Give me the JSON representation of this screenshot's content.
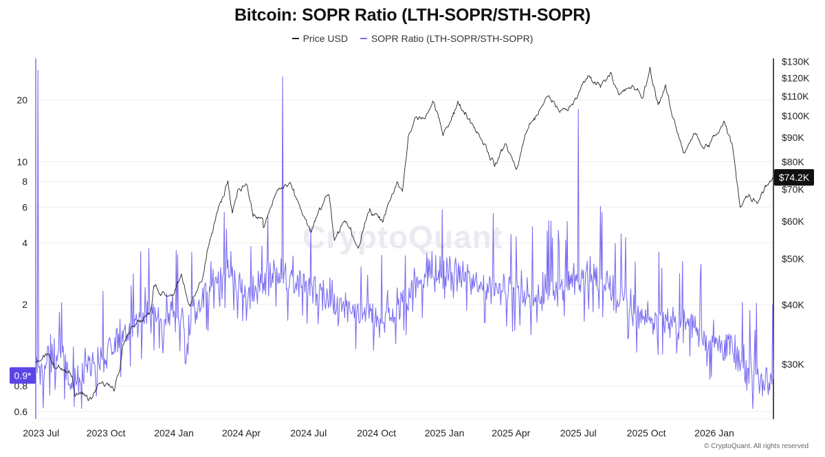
{
  "colors": {
    "price": "#222222",
    "sopr": "#7b6ef0",
    "grid": "#eeeeee",
    "price_badge": "#111111",
    "sopr_badge": "#5b45e6"
  },
  "legend": {
    "price_label": "Price USD",
    "sopr_label": "SOPR Ratio (LTH-SOPR/STH-SOPR)"
  },
  "watermark": "CryptoQuant",
  "copyright": "© CryptoQuant. All rights reserved",
  "chart_data": {
    "type": "line",
    "title": "Bitcoin: SOPR Ratio (LTH-SOPR/STH-SOPR)",
    "xlabel": "",
    "ylabel": "",
    "x_range": [
      "2023-06-28",
      "2026-03-22"
    ],
    "x_ticks": [
      {
        "date": "2023-07-01",
        "label": "2023 Jul"
      },
      {
        "date": "2023-10-01",
        "label": "2023 Oct"
      },
      {
        "date": "2024-01-01",
        "label": "2024 Jan"
      },
      {
        "date": "2024-04-01",
        "label": "2024 Apr"
      },
      {
        "date": "2024-07-01",
        "label": "2024 Jul"
      },
      {
        "date": "2024-10-01",
        "label": "2024 Oct"
      },
      {
        "date": "2025-01-01",
        "label": "2025 Jan"
      },
      {
        "date": "2025-04-01",
        "label": "2025 Apr"
      },
      {
        "date": "2025-07-01",
        "label": "2025 Jul"
      },
      {
        "date": "2025-10-01",
        "label": "2025 Oct"
      },
      {
        "date": "2026-01-01",
        "label": "2026 Jan"
      }
    ],
    "y_left": {
      "scale": "log",
      "range": [
        0.55,
        32
      ],
      "ticks": [
        {
          "value": 0.6,
          "label": "0.6"
        },
        {
          "value": 0.8,
          "label": "0.8"
        },
        {
          "value": 2,
          "label": "2"
        },
        {
          "value": 4,
          "label": "4"
        },
        {
          "value": 6,
          "label": "6"
        },
        {
          "value": 8,
          "label": "8"
        },
        {
          "value": 10,
          "label": "10"
        },
        {
          "value": 20,
          "label": "20"
        }
      ]
    },
    "y_right": {
      "scale": "log",
      "range": [
        23000,
        132000
      ],
      "ticks": [
        {
          "value": 30000,
          "label": "$30K"
        },
        {
          "value": 40000,
          "label": "$40K"
        },
        {
          "value": 50000,
          "label": "$50K"
        },
        {
          "value": 60000,
          "label": "$60K"
        },
        {
          "value": 70000,
          "label": "$70K"
        },
        {
          "value": 80000,
          "label": "$80K"
        },
        {
          "value": 90000,
          "label": "$90K"
        },
        {
          "value": 100000,
          "label": "$100K"
        },
        {
          "value": 110000,
          "label": "$110K"
        },
        {
          "value": 120000,
          "label": "$120K"
        },
        {
          "value": 130000,
          "label": "$130K"
        }
      ]
    },
    "current_values": {
      "price_label": "$74.2K",
      "price_value": 74200,
      "sopr_label": "0.9*",
      "sopr_value": 0.9
    },
    "series": [
      {
        "name": "Price USD",
        "axis": "right",
        "points": [
          [
            "2023-06-28",
            30500
          ],
          [
            "2023-07-05",
            30800
          ],
          [
            "2023-07-14",
            31200
          ],
          [
            "2023-07-24",
            29500
          ],
          [
            "2023-08-05",
            29200
          ],
          [
            "2023-08-16",
            28800
          ],
          [
            "2023-08-20",
            26100
          ],
          [
            "2023-09-01",
            25900
          ],
          [
            "2023-09-11",
            25100
          ],
          [
            "2023-09-20",
            27100
          ],
          [
            "2023-10-01",
            27300
          ],
          [
            "2023-10-12",
            26800
          ],
          [
            "2023-10-20",
            29600
          ],
          [
            "2023-10-24",
            33900
          ],
          [
            "2023-11-09",
            36700
          ],
          [
            "2023-11-20",
            37400
          ],
          [
            "2023-12-01",
            38700
          ],
          [
            "2023-12-05",
            44000
          ],
          [
            "2023-12-15",
            42500
          ],
          [
            "2023-12-31",
            42300
          ],
          [
            "2024-01-11",
            46600
          ],
          [
            "2024-01-23",
            39500
          ],
          [
            "2024-02-08",
            45300
          ],
          [
            "2024-02-15",
            52000
          ],
          [
            "2024-02-28",
            62000
          ],
          [
            "2024-03-05",
            66000
          ],
          [
            "2024-03-14",
            73000
          ],
          [
            "2024-03-20",
            63000
          ],
          [
            "2024-03-28",
            70500
          ],
          [
            "2024-04-09",
            71500
          ],
          [
            "2024-04-17",
            61300
          ],
          [
            "2024-04-30",
            60600
          ],
          [
            "2024-05-01",
            58000
          ],
          [
            "2024-05-20",
            70000
          ],
          [
            "2024-06-07",
            71000
          ],
          [
            "2024-06-18",
            65000
          ],
          [
            "2024-07-05",
            56500
          ],
          [
            "2024-07-15",
            63000
          ],
          [
            "2024-07-29",
            68500
          ],
          [
            "2024-08-05",
            54000
          ],
          [
            "2024-08-20",
            60500
          ],
          [
            "2024-09-06",
            53000
          ],
          [
            "2024-09-20",
            63000
          ],
          [
            "2024-10-10",
            60500
          ],
          [
            "2024-10-29",
            72000
          ],
          [
            "2024-11-05",
            69000
          ],
          [
            "2024-11-13",
            90000
          ],
          [
            "2024-11-22",
            98500
          ],
          [
            "2024-12-05",
            99000
          ],
          [
            "2024-12-17",
            106000
          ],
          [
            "2024-12-30",
            92500
          ],
          [
            "2025-01-07",
            97000
          ],
          [
            "2025-01-20",
            106000
          ],
          [
            "2025-02-03",
            99000
          ],
          [
            "2025-02-25",
            87000
          ],
          [
            "2025-03-10",
            78500
          ],
          [
            "2025-03-25",
            87500
          ],
          [
            "2025-04-08",
            77000
          ],
          [
            "2025-04-22",
            93000
          ],
          [
            "2025-05-12",
            104000
          ],
          [
            "2025-05-22",
            111000
          ],
          [
            "2025-06-05",
            101500
          ],
          [
            "2025-06-20",
            104000
          ],
          [
            "2025-07-14",
            121000
          ],
          [
            "2025-07-31",
            116000
          ],
          [
            "2025-08-14",
            124000
          ],
          [
            "2025-08-25",
            110000
          ],
          [
            "2025-09-12",
            115500
          ],
          [
            "2025-09-26",
            109000
          ],
          [
            "2025-10-06",
            125000
          ],
          [
            "2025-10-17",
            106000
          ],
          [
            "2025-10-27",
            115000
          ],
          [
            "2025-11-04",
            101000
          ],
          [
            "2025-11-21",
            84000
          ],
          [
            "2025-12-05",
            92000
          ],
          [
            "2025-12-18",
            85000
          ],
          [
            "2026-01-05",
            91500
          ],
          [
            "2026-01-14",
            96500
          ],
          [
            "2026-01-25",
            87000
          ],
          [
            "2026-02-05",
            65000
          ],
          [
            "2026-02-15",
            68000
          ],
          [
            "2026-02-28",
            66000
          ],
          [
            "2026-03-10",
            71000
          ],
          [
            "2026-03-22",
            74200
          ]
        ]
      },
      {
        "name": "SOPR Ratio (LTH-SOPR/STH-SOPR)",
        "axis": "left",
        "points": [
          [
            "2023-06-28",
            1.0
          ],
          [
            "2023-07-01",
            28.0
          ],
          [
            "2023-07-04",
            0.9
          ],
          [
            "2023-07-15",
            1.1
          ],
          [
            "2023-08-01",
            1.15
          ],
          [
            "2023-08-17",
            0.75
          ],
          [
            "2023-09-01",
            1.0
          ],
          [
            "2023-09-15",
            1.05
          ],
          [
            "2023-10-01",
            1.05
          ],
          [
            "2023-10-24",
            1.5
          ],
          [
            "2023-11-15",
            1.7
          ],
          [
            "2023-12-01",
            1.8
          ],
          [
            "2023-12-15",
            1.7
          ],
          [
            "2024-01-01",
            1.9
          ],
          [
            "2024-01-20",
            1.6
          ],
          [
            "2024-02-10",
            2.1
          ],
          [
            "2024-02-25",
            2.6
          ],
          [
            "2024-03-10",
            2.9
          ],
          [
            "2024-03-25",
            2.6
          ],
          [
            "2024-04-15",
            2.2
          ],
          [
            "2024-05-01",
            2.6
          ],
          [
            "2024-05-20",
            2.9
          ],
          [
            "2024-05-27",
            26.0
          ],
          [
            "2024-05-30",
            2.7
          ],
          [
            "2024-06-20",
            2.6
          ],
          [
            "2024-07-10",
            2.3
          ],
          [
            "2024-08-05",
            2.0
          ],
          [
            "2024-09-05",
            1.8
          ],
          [
            "2024-10-01",
            1.7
          ],
          [
            "2024-10-20",
            1.8
          ],
          [
            "2024-11-15",
            2.3
          ],
          [
            "2024-12-10",
            2.9
          ],
          [
            "2025-01-01",
            2.7
          ],
          [
            "2025-01-25",
            2.9
          ],
          [
            "2025-02-20",
            2.4
          ],
          [
            "2025-03-15",
            2.5
          ],
          [
            "2025-04-15",
            2.3
          ],
          [
            "2025-05-10",
            2.1
          ],
          [
            "2025-06-01",
            2.4
          ],
          [
            "2025-06-25",
            2.7
          ],
          [
            "2025-07-01",
            18.0
          ],
          [
            "2025-07-04",
            2.6
          ],
          [
            "2025-07-25",
            2.8
          ],
          [
            "2025-08-20",
            2.3
          ],
          [
            "2025-09-15",
            1.8
          ],
          [
            "2025-10-10",
            1.7
          ],
          [
            "2025-11-05",
            1.7
          ],
          [
            "2025-11-25",
            1.6
          ],
          [
            "2025-12-15",
            1.45
          ],
          [
            "2026-01-05",
            1.3
          ],
          [
            "2026-01-25",
            1.2
          ],
          [
            "2026-02-10",
            0.95
          ],
          [
            "2026-03-01",
            0.9
          ],
          [
            "2026-03-15",
            0.85
          ],
          [
            "2026-03-22",
            0.9
          ]
        ]
      }
    ]
  }
}
